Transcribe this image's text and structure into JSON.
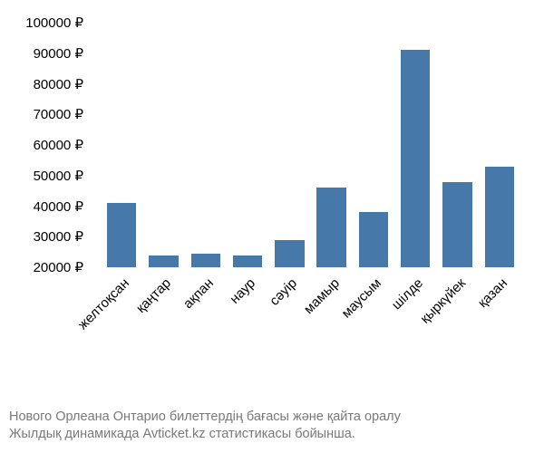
{
  "chart": {
    "type": "bar",
    "currency_suffix": " ₽",
    "ylim": [
      20000,
      100000
    ],
    "ytick_step": 10000,
    "yticks": [
      20000,
      30000,
      40000,
      50000,
      60000,
      70000,
      80000,
      90000,
      100000
    ],
    "ytick_labels": [
      "20000 ₽",
      "30000 ₽",
      "40000 ₽",
      "50000 ₽",
      "60000 ₽",
      "70000 ₽",
      "80000 ₽",
      "90000 ₽",
      "100000 ₽"
    ],
    "categories": [
      "желтоқсан",
      "қаңтар",
      "ақпан",
      "наур",
      "сәуір",
      "мамыр",
      "маусым",
      "шілде",
      "қыркүйек",
      "қазан"
    ],
    "values": [
      41000,
      24000,
      24500,
      24000,
      29000,
      46000,
      38000,
      91000,
      48000,
      53000
    ],
    "bar_color": "#4678a9",
    "background_color": "#ffffff",
    "axis_label_color": "#000000",
    "axis_label_fontsize": 15,
    "bar_width": 0.7,
    "x_label_rotation": -45
  },
  "caption": {
    "line1": "Нового Орлеана Онтарио билеттердің бағасы және қайта оралу",
    "line2": "Жылдық динамикада Avticket.kz статистикасы бойынша.",
    "color": "#797979",
    "fontsize": 14.5
  }
}
